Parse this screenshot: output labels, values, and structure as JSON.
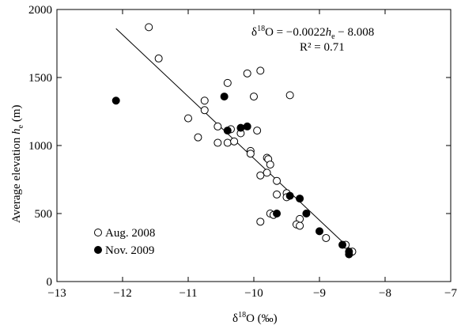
{
  "chart_data": {
    "type": "scatter",
    "xlabel_main": "δ",
    "xlabel_sup": "18",
    "xlabel_rest": "O (‰)",
    "ylabel_main": "Average elevation ",
    "ylabel_var": "h",
    "ylabel_sub": "e",
    "ylabel_unit": " (m)",
    "xlim": [
      -13,
      -7
    ],
    "ylim": [
      0,
      2000
    ],
    "x_ticks": [
      "−13",
      "−12",
      "−11",
      "−10",
      "−9",
      "−8",
      "−7"
    ],
    "x_tick_values": [
      -13,
      -12,
      -11,
      -10,
      -9,
      -8,
      -7
    ],
    "y_ticks": [
      "0",
      "500",
      "1000",
      "1500",
      "2000"
    ],
    "y_tick_values": [
      0,
      500,
      1000,
      1500,
      2000
    ],
    "grid": false,
    "legend_position": "bottom-left",
    "equation": {
      "d": "δ",
      "sup": "18",
      "mid": "O = −0.0022",
      "var": "h",
      "sub": "e",
      "end": " − 8.008",
      "r2": "R² = 0.71"
    },
    "trendline": {
      "x_start": -12.1,
      "x_end": -8.55,
      "slope_x_per_h": -0.0022,
      "intercept": -8.008
    },
    "series": [
      {
        "name": "Aug. 2008",
        "marker": "open-circle",
        "color": "#000000",
        "points": [
          [
            -11.6,
            1870
          ],
          [
            -11.45,
            1640
          ],
          [
            -10.75,
            1330
          ],
          [
            -10.75,
            1260
          ],
          [
            -11.0,
            1200
          ],
          [
            -10.85,
            1060
          ],
          [
            -10.55,
            1140
          ],
          [
            -10.55,
            1020
          ],
          [
            -10.4,
            1020
          ],
          [
            -10.35,
            1120
          ],
          [
            -10.3,
            1030
          ],
          [
            -10.2,
            1090
          ],
          [
            -10.4,
            1460
          ],
          [
            -10.1,
            1530
          ],
          [
            -9.9,
            1550
          ],
          [
            -10.0,
            1360
          ],
          [
            -9.45,
            1370
          ],
          [
            -9.95,
            1110
          ],
          [
            -10.05,
            960
          ],
          [
            -10.05,
            940
          ],
          [
            -9.8,
            910
          ],
          [
            -9.78,
            900
          ],
          [
            -9.75,
            860
          ],
          [
            -9.8,
            800
          ],
          [
            -9.9,
            780
          ],
          [
            -9.65,
            740
          ],
          [
            -9.65,
            640
          ],
          [
            -9.5,
            650
          ],
          [
            -9.5,
            620
          ],
          [
            -9.75,
            500
          ],
          [
            -9.7,
            490
          ],
          [
            -9.9,
            440
          ],
          [
            -9.3,
            460
          ],
          [
            -9.35,
            420
          ],
          [
            -9.3,
            410
          ],
          [
            -8.9,
            320
          ],
          [
            -8.6,
            270
          ],
          [
            -8.5,
            220
          ]
        ]
      },
      {
        "name": "Nov. 2009",
        "marker": "filled-circle",
        "color": "#000000",
        "points": [
          [
            -12.1,
            1330
          ],
          [
            -10.45,
            1360
          ],
          [
            -10.4,
            1110
          ],
          [
            -10.2,
            1130
          ],
          [
            -10.1,
            1140
          ],
          [
            -9.65,
            500
          ],
          [
            -9.45,
            630
          ],
          [
            -9.3,
            610
          ],
          [
            -9.2,
            500
          ],
          [
            -9.0,
            370
          ],
          [
            -8.65,
            270
          ],
          [
            -8.55,
            220
          ],
          [
            -8.55,
            200
          ]
        ]
      }
    ]
  }
}
